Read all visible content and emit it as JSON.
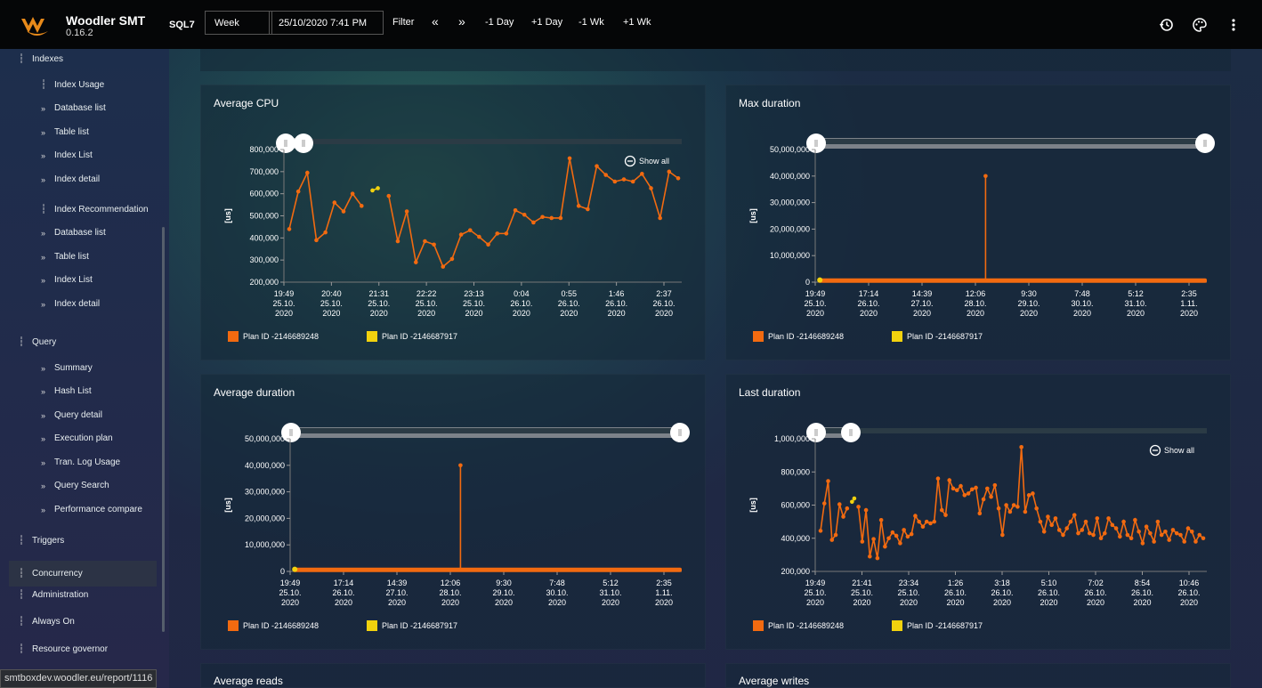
{
  "app": {
    "name": "Woodler SMT",
    "version": "0.16.2",
    "server": "SQL7"
  },
  "toolbar": {
    "period": "Week",
    "datetime": "25/10/2020 7:41 PM",
    "filter": "Filter",
    "prev": "«",
    "next": "»",
    "minus_day": "-1 Day",
    "plus_day": "+1 Day",
    "minus_week": "-1 Wk",
    "plus_week": "+1 Wk",
    "icons": [
      "history-icon",
      "palette-icon",
      "more-vert-icon"
    ]
  },
  "sidebar": {
    "items": [
      {
        "label": "Indexes",
        "level": 0,
        "icon": "chart-icon"
      },
      {
        "label": "Index Usage",
        "level": 1,
        "icon": "chart-icon"
      },
      {
        "label": "Database list",
        "level": 1,
        "icon": "chevrons-icon"
      },
      {
        "label": "Table list",
        "level": 1,
        "icon": "chevrons-icon"
      },
      {
        "label": "Index List",
        "level": 1,
        "icon": "chevrons-icon"
      },
      {
        "label": "Index detail",
        "level": 1,
        "icon": "chevrons-icon"
      },
      {
        "label": "Index Recommendation",
        "level": 1,
        "icon": "chart-icon"
      },
      {
        "label": "Database list",
        "level": 1,
        "icon": "chevrons-icon"
      },
      {
        "label": "Table list",
        "level": 1,
        "icon": "chevrons-icon"
      },
      {
        "label": "Index List",
        "level": 1,
        "icon": "chevrons-icon"
      },
      {
        "label": "Index detail",
        "level": 1,
        "icon": "chevrons-icon"
      },
      {
        "label": "Query",
        "level": 0,
        "icon": "chart-icon"
      },
      {
        "label": "Summary",
        "level": 1,
        "icon": "chevrons-icon"
      },
      {
        "label": "Hash List",
        "level": 1,
        "icon": "chevrons-icon"
      },
      {
        "label": "Query detail",
        "level": 1,
        "icon": "chevrons-icon"
      },
      {
        "label": "Execution plan",
        "level": 1,
        "icon": "chevrons-icon"
      },
      {
        "label": "Tran. Log Usage",
        "level": 1,
        "icon": "chevrons-icon"
      },
      {
        "label": "Query Search",
        "level": 1,
        "icon": "chevrons-icon"
      },
      {
        "label": "Performance compare",
        "level": 1,
        "icon": "chevrons-icon"
      },
      {
        "label": "Triggers",
        "level": 0,
        "icon": "chart-icon"
      },
      {
        "label": "Concurrency",
        "level": 0,
        "icon": "chart-icon",
        "active": true
      },
      {
        "label": "Administration",
        "level": 0,
        "icon": "chart-icon"
      },
      {
        "label": "Always On",
        "level": 0,
        "icon": "chart-icon"
      },
      {
        "label": "Resource governor",
        "level": 0,
        "icon": "chart-icon"
      }
    ]
  },
  "status_url": "smtboxdev.woodler.eu/report/1116",
  "colors": {
    "series1": "#f26a10",
    "series2": "#f2d20e",
    "accent": "#e88a1a"
  },
  "legend": {
    "series1": "Plan ID -2146689248",
    "series2": "Plan ID -2146687917"
  },
  "show_all": "Show all",
  "unit_label": "[us]",
  "panels": {
    "cpu": {
      "title": "Average CPU"
    },
    "maxdur": {
      "title": "Max duration"
    },
    "avgdur": {
      "title": "Average duration"
    },
    "lastdur": {
      "title": "Last duration"
    },
    "reads": {
      "title": "Average reads"
    },
    "writes": {
      "title": "Average writes"
    }
  },
  "chart_data": [
    {
      "id": "cpu",
      "type": "line",
      "title": "Average CPU",
      "ylabel": "[us]",
      "ylim": [
        200000,
        800000
      ],
      "yticks": [
        "200,000",
        "300,000",
        "400,000",
        "500,000",
        "600,000",
        "700,000",
        "800,000"
      ],
      "xticks": [
        [
          "19:49",
          "25.10.",
          "2020"
        ],
        [
          "20:40",
          "25.10.",
          "2020"
        ],
        [
          "21:31",
          "25.10.",
          "2020"
        ],
        [
          "22:22",
          "25.10.",
          "2020"
        ],
        [
          "23:13",
          "25.10.",
          "2020"
        ],
        [
          "0:04",
          "26.10.",
          "2020"
        ],
        [
          "0:55",
          "26.10.",
          "2020"
        ],
        [
          "1:46",
          "26.10.",
          "2020"
        ],
        [
          "2:37",
          "26.10.",
          "2020"
        ]
      ],
      "series": [
        {
          "name": "Plan ID -2146689248",
          "values": [
            440000,
            610000,
            695000,
            390000,
            425000,
            560000,
            520000,
            600000,
            545000,
            null,
            null,
            590000,
            385000,
            520000,
            290000,
            385000,
            370000,
            270000,
            305000,
            415000,
            435000,
            405000,
            370000,
            420000,
            420000,
            525000,
            505000,
            470000,
            495000,
            490000,
            490000,
            760000,
            545000,
            530000,
            725000,
            685000,
            655000,
            665000,
            655000,
            690000,
            625000,
            490000,
            700000,
            670000
          ]
        },
        {
          "name": "Plan ID -2146687917",
          "points": [
            [
              9.2,
              615000
            ],
            [
              9.8,
              625000
            ]
          ]
        }
      ]
    },
    {
      "id": "maxdur",
      "type": "line",
      "title": "Max duration",
      "ylabel": "[us]",
      "ylim": [
        0,
        50000000
      ],
      "yticks": [
        "0",
        "10,000,000",
        "20,000,000",
        "30,000,000",
        "40,000,000",
        "50,000,000"
      ],
      "xticks": [
        [
          "19:49",
          "25.10.",
          "2020"
        ],
        [
          "17:14",
          "26.10.",
          "2020"
        ],
        [
          "14:39",
          "27.10.",
          "2020"
        ],
        [
          "12:06",
          "28.10.",
          "2020"
        ],
        [
          "9:30",
          "29.10.",
          "2020"
        ],
        [
          "7:48",
          "30.10.",
          "2020"
        ],
        [
          "5:12",
          "31.10.",
          "2020"
        ],
        [
          "2:35",
          "1.11.",
          "2020"
        ]
      ],
      "series": [
        {
          "name": "Plan ID -2146689248",
          "baseline": 600000,
          "spike": {
            "x": 0.435,
            "y": 40000000
          }
        },
        {
          "name": "Plan ID -2146687917",
          "points": [
            [
              0.005,
              800000
            ]
          ]
        }
      ]
    },
    {
      "id": "avgdur",
      "type": "line",
      "title": "Average duration",
      "ylabel": "[us]",
      "ylim": [
        0,
        50000000
      ],
      "yticks": [
        "0",
        "10,000,000",
        "20,000,000",
        "30,000,000",
        "40,000,000",
        "50,000,000"
      ],
      "xticks": [
        [
          "19:49",
          "25.10.",
          "2020"
        ],
        [
          "17:14",
          "26.10.",
          "2020"
        ],
        [
          "14:39",
          "27.10.",
          "2020"
        ],
        [
          "12:06",
          "28.10.",
          "2020"
        ],
        [
          "9:30",
          "29.10.",
          "2020"
        ],
        [
          "7:48",
          "30.10.",
          "2020"
        ],
        [
          "5:12",
          "31.10.",
          "2020"
        ],
        [
          "2:35",
          "1.11.",
          "2020"
        ]
      ],
      "series": [
        {
          "name": "Plan ID -2146689248",
          "baseline": 600000,
          "spike": {
            "x": 0.435,
            "y": 40000000
          }
        },
        {
          "name": "Plan ID -2146687917",
          "points": [
            [
              0.005,
              800000
            ]
          ]
        }
      ]
    },
    {
      "id": "lastdur",
      "type": "line",
      "title": "Last duration",
      "ylabel": "[us]",
      "ylim": [
        200000,
        1000000
      ],
      "yticks": [
        "200,000",
        "400,000",
        "600,000",
        "800,000",
        "1,000,000"
      ],
      "xticks": [
        [
          "19:49",
          "25.10.",
          "2020"
        ],
        [
          "21:41",
          "25.10.",
          "2020"
        ],
        [
          "23:34",
          "25.10.",
          "2020"
        ],
        [
          "1:26",
          "26.10.",
          "2020"
        ],
        [
          "3:18",
          "26.10.",
          "2020"
        ],
        [
          "5:10",
          "26.10.",
          "2020"
        ],
        [
          "7:02",
          "26.10.",
          "2020"
        ],
        [
          "8:54",
          "26.10.",
          "2020"
        ],
        [
          "10:46",
          "26.10.",
          "2020"
        ]
      ],
      "series": [
        {
          "name": "Plan ID -2146689248",
          "values": [
            445000,
            610000,
            745000,
            390000,
            420000,
            605000,
            530000,
            580000,
            null,
            null,
            590000,
            380000,
            570000,
            290000,
            395000,
            280000,
            510000,
            350000,
            400000,
            435000,
            415000,
            370000,
            450000,
            410000,
            425000,
            535000,
            500000,
            470000,
            500000,
            490000,
            500000,
            760000,
            570000,
            540000,
            750000,
            700000,
            690000,
            715000,
            660000,
            670000,
            695000,
            705000,
            550000,
            635000,
            700000,
            650000,
            720000,
            580000,
            420000,
            600000,
            560000,
            600000,
            590000,
            950000,
            560000,
            660000,
            670000,
            580000,
            500000,
            440000,
            530000,
            480000,
            520000,
            450000,
            420000,
            460000,
            500000,
            540000,
            430000,
            450000,
            500000,
            430000,
            420000,
            520000,
            400000,
            430000,
            520000,
            480000,
            460000,
            410000,
            500000,
            420000,
            400000,
            510000,
            440000,
            370000,
            470000,
            430000,
            380000,
            500000,
            420000,
            440000,
            390000,
            450000,
            430000,
            420000,
            380000,
            460000,
            440000,
            380000,
            420000,
            400000
          ]
        },
        {
          "name": "Plan ID -2146687917",
          "points": [
            [
              8.3,
              620000
            ],
            [
              8.9,
              640000
            ]
          ]
        }
      ]
    }
  ]
}
